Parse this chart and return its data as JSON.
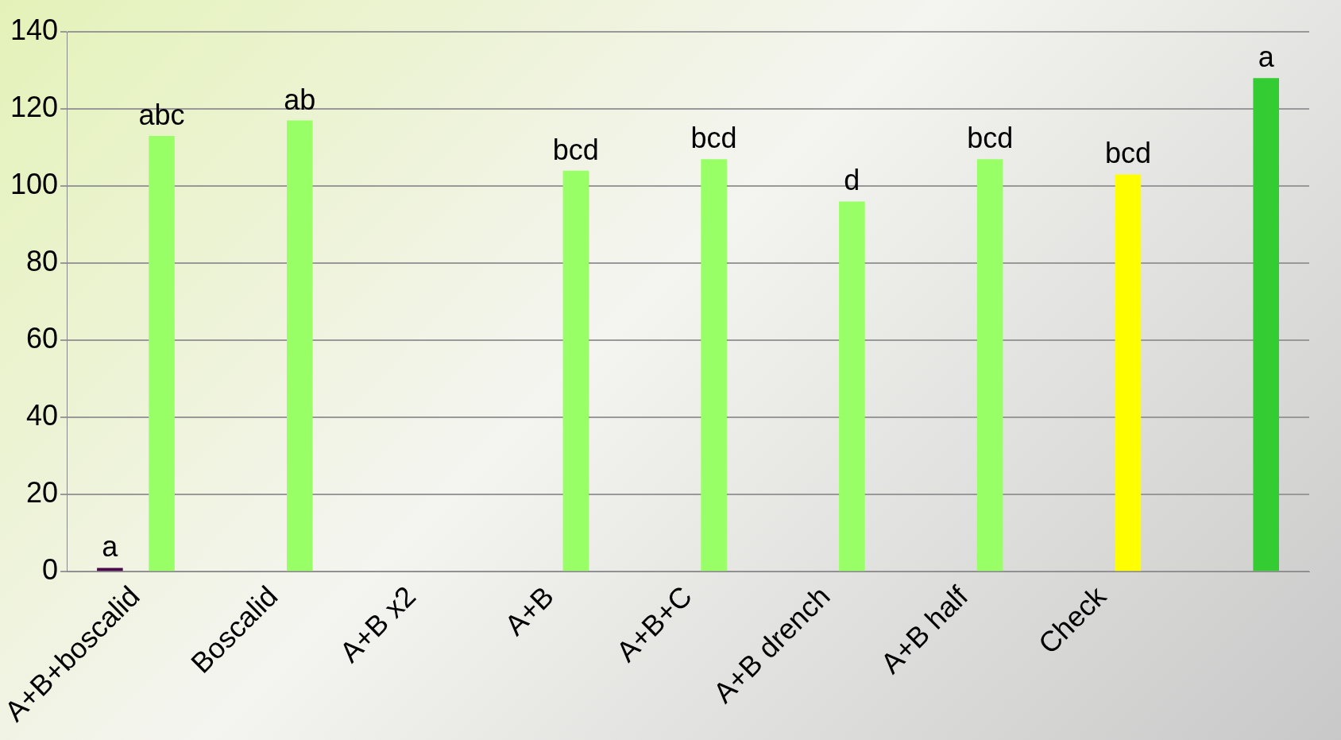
{
  "chart_data": {
    "type": "bar",
    "categories": [
      "A+B+boscalid",
      "Boscalid",
      "A+B x2",
      "A+B",
      "A+B+C",
      "A+B drench",
      "A+B half",
      "Check",
      null
    ],
    "series": [
      {
        "color": "#4b0a4b",
        "values": [
          1,
          null,
          null,
          null,
          null,
          null,
          null,
          null,
          null
        ],
        "value_labels": [
          "a",
          null,
          null,
          null,
          null,
          null,
          null,
          null,
          null
        ]
      },
      {
        "colors": [
          "#99ff66",
          "#99ff66",
          null,
          "#99ff66",
          "#99ff66",
          "#99ff66",
          "#99ff66",
          "#ffff00",
          "#33cc33"
        ],
        "values": [
          113,
          117,
          null,
          104,
          107,
          96,
          107,
          103,
          128
        ],
        "value_labels": [
          "abc",
          "ab",
          null,
          "bcd",
          "bcd",
          "d",
          "bcd",
          "bcd",
          "a"
        ]
      }
    ],
    "ylim": [
      0,
      140
    ],
    "yticks": [
      0,
      20,
      40,
      60,
      80,
      100,
      120,
      140
    ],
    "grid": "y",
    "legend": false
  }
}
